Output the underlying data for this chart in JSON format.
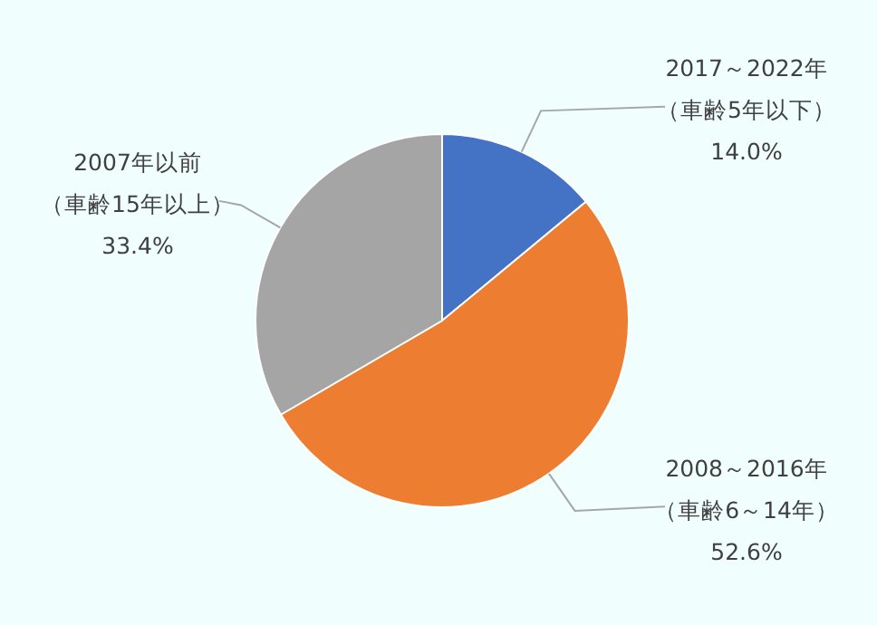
{
  "chart_data": {
    "type": "pie",
    "categories": [
      "2017～2022年（車齢5年以下）",
      "2008～2016年（車齢6～14年）",
      "2007年以前（車齢15年以上）"
    ],
    "values": [
      14.0,
      52.6,
      33.4
    ],
    "value_labels": [
      "14.0%",
      "52.6%",
      "33.4%"
    ],
    "colors": [
      "#4472c4",
      "#ed7d31",
      "#a5a5a5"
    ],
    "legend": false
  }
}
